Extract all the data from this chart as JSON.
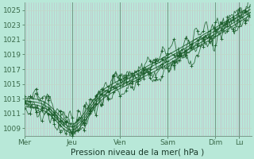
{
  "bg_color": "#b8e8d8",
  "grid_color_v": "#c8b8c8",
  "grid_color_h": "#c0d8c8",
  "line_color": "#1a5c2a",
  "title": "Pression niveau de la mer( hPa )",
  "ylim": [
    1008.0,
    1026.0
  ],
  "yticks": [
    1009,
    1011,
    1013,
    1015,
    1017,
    1019,
    1021,
    1023,
    1025
  ],
  "xtick_labels": [
    "Mer",
    "Jeu",
    "Ven",
    "Sam",
    "Dim",
    "Lu"
  ],
  "xtick_positions": [
    0,
    48,
    96,
    144,
    192,
    216
  ],
  "total_points": 228,
  "num_smooth": 4,
  "num_noisy": 5
}
